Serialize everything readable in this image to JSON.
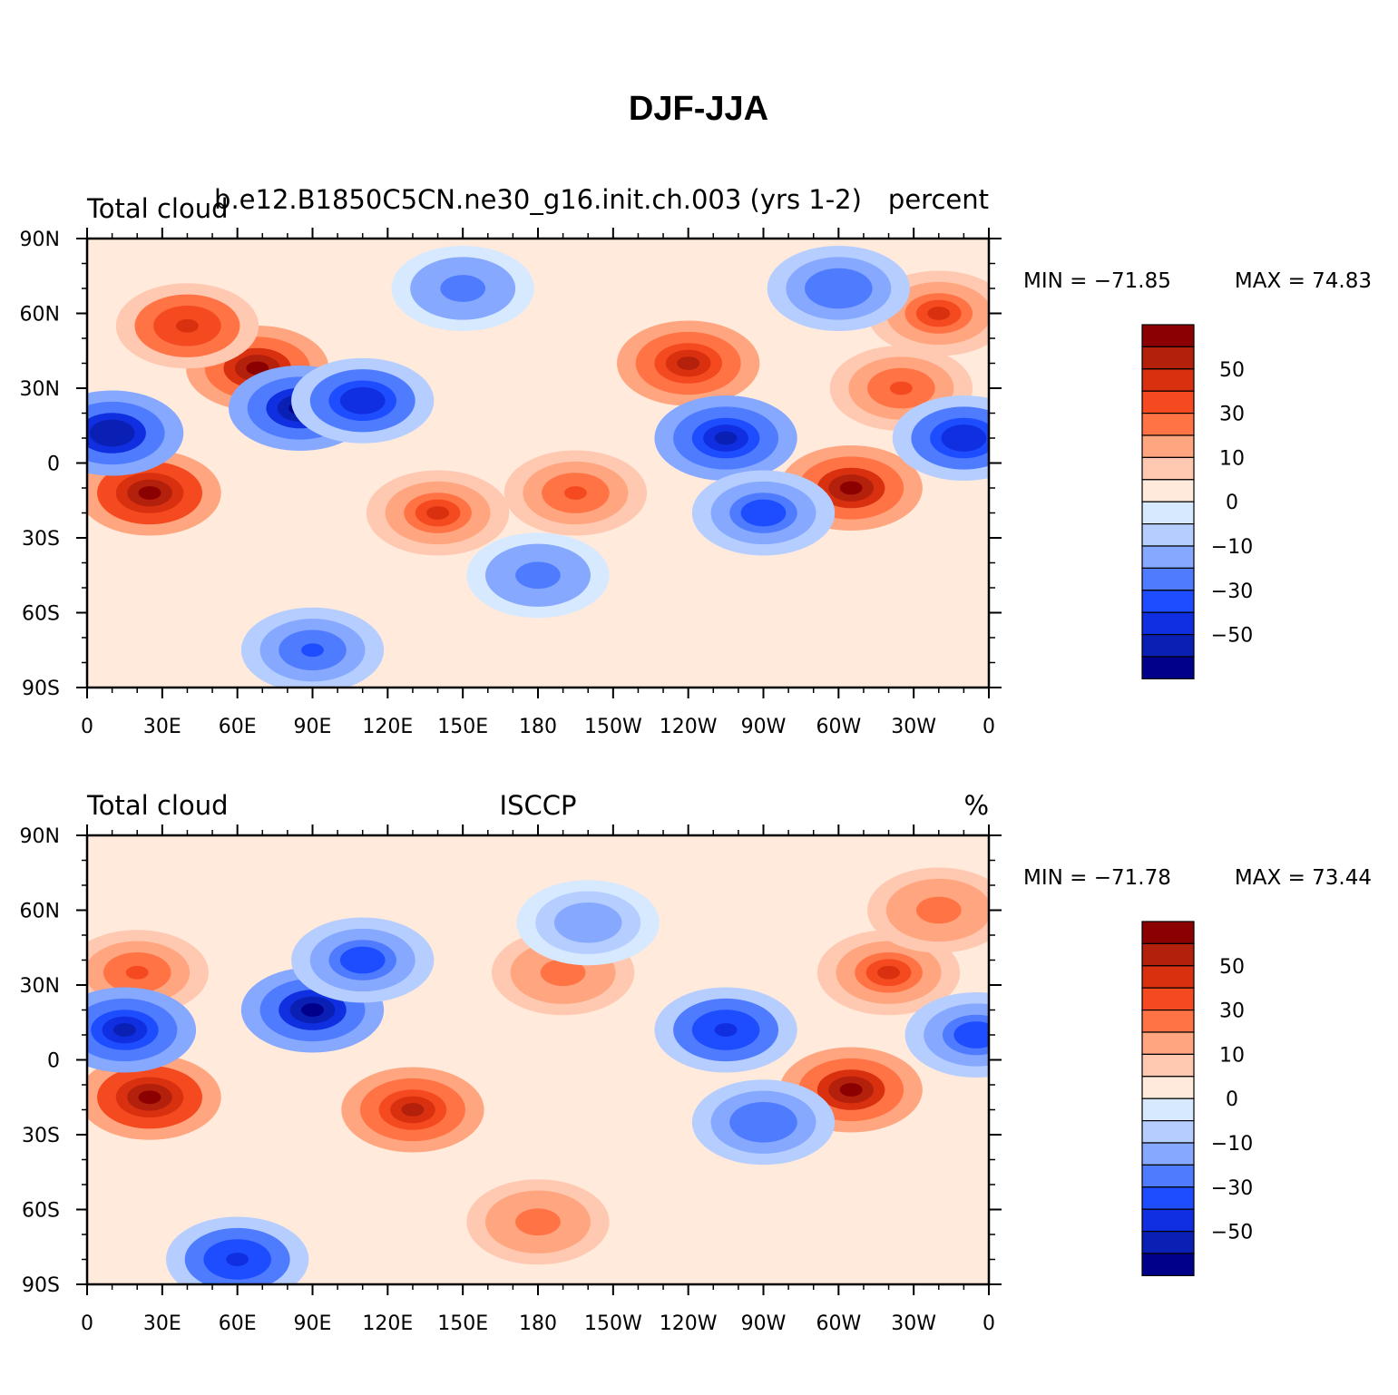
{
  "figure_title": "DJF-JJA",
  "chart_data": [
    {
      "type": "heatmap",
      "title": "",
      "left_label": "Total cloud",
      "center_label": "b.e12.B1850C5CN.ne30_g16.init.ch.003 (yrs 1-2)",
      "right_label": "percent",
      "x_ticks": [
        "0",
        "30E",
        "60E",
        "90E",
        "120E",
        "150E",
        "180",
        "150W",
        "120W",
        "90W",
        "60W",
        "30W",
        "0"
      ],
      "y_ticks": [
        "90N",
        "60N",
        "30N",
        "0",
        "30S",
        "60S",
        "90S"
      ],
      "xlim": [
        0,
        360
      ],
      "ylim": [
        -90,
        90
      ],
      "min_label": "MIN = −71.85",
      "max_label": "MAX =  74.83",
      "colorbar_labels": [
        "50",
        "30",
        "10",
        "0",
        "−10",
        "−30",
        "−50"
      ],
      "anomalies": [
        {
          "lon": 25,
          "lat": -12,
          "value": 70
        },
        {
          "lon": 68,
          "lat": 38,
          "value": 60
        },
        {
          "lon": 40,
          "lat": 55,
          "value": 45
        },
        {
          "lon": 305,
          "lat": -10,
          "value": 60
        },
        {
          "lon": 240,
          "lat": 40,
          "value": 55
        },
        {
          "lon": 340,
          "lat": 60,
          "value": 40
        },
        {
          "lon": 325,
          "lat": 30,
          "value": 35
        },
        {
          "lon": 140,
          "lat": -20,
          "value": 40
        },
        {
          "lon": 195,
          "lat": -12,
          "value": 30
        },
        {
          "lon": 10,
          "lat": 12,
          "value": -60
        },
        {
          "lon": 85,
          "lat": 22,
          "value": -65
        },
        {
          "lon": 110,
          "lat": 25,
          "value": -50
        },
        {
          "lon": 255,
          "lat": 10,
          "value": -55
        },
        {
          "lon": 350,
          "lat": 10,
          "value": -50
        },
        {
          "lon": 270,
          "lat": -20,
          "value": -40
        },
        {
          "lon": 150,
          "lat": 70,
          "value": -25
        },
        {
          "lon": 180,
          "lat": -45,
          "value": -25
        },
        {
          "lon": 90,
          "lat": -75,
          "value": -35
        },
        {
          "lon": 300,
          "lat": 70,
          "value": -30
        }
      ]
    },
    {
      "type": "heatmap",
      "title": "",
      "left_label": "Total cloud",
      "center_label": "ISCCP",
      "right_label": "%",
      "x_ticks": [
        "0",
        "30E",
        "60E",
        "90E",
        "120E",
        "150E",
        "180",
        "150W",
        "120W",
        "90W",
        "60W",
        "30W",
        "0"
      ],
      "y_ticks": [
        "90N",
        "60N",
        "30N",
        "0",
        "30S",
        "60S",
        "90S"
      ],
      "xlim": [
        0,
        360
      ],
      "ylim": [
        -90,
        90
      ],
      "min_label": "MIN = −71.78",
      "max_label": "MAX =  73.44",
      "colorbar_labels": [
        "50",
        "30",
        "10",
        "0",
        "−10",
        "−30",
        "−50"
      ],
      "anomalies": [
        {
          "lon": 25,
          "lat": -15,
          "value": 70
        },
        {
          "lon": 130,
          "lat": -20,
          "value": 55
        },
        {
          "lon": 305,
          "lat": -12,
          "value": 60
        },
        {
          "lon": 320,
          "lat": 35,
          "value": 40
        },
        {
          "lon": 20,
          "lat": 35,
          "value": 35
        },
        {
          "lon": 190,
          "lat": 35,
          "value": 25
        },
        {
          "lon": 180,
          "lat": -65,
          "value": 25
        },
        {
          "lon": 340,
          "lat": 60,
          "value": 25
        },
        {
          "lon": 90,
          "lat": 20,
          "value": -65
        },
        {
          "lon": 15,
          "lat": 12,
          "value": -55
        },
        {
          "lon": 110,
          "lat": 40,
          "value": -40
        },
        {
          "lon": 255,
          "lat": 12,
          "value": -45
        },
        {
          "lon": 355,
          "lat": 10,
          "value": -40
        },
        {
          "lon": 270,
          "lat": -25,
          "value": -30
        },
        {
          "lon": 60,
          "lat": -80,
          "value": -45
        },
        {
          "lon": 200,
          "lat": 55,
          "value": -20
        }
      ]
    }
  ],
  "colorbar_colors": [
    "#8b0000",
    "#b3200b",
    "#d93010",
    "#f54a1f",
    "#ff7345",
    "#ffa57f",
    "#ffc8b0",
    "#ffeadc",
    "#d7e9ff",
    "#b5ceff",
    "#86a8ff",
    "#4f7cff",
    "#1e4dff",
    "#0f2fe0",
    "#0a1fb3",
    "#00008b"
  ],
  "line_color": "#000000"
}
